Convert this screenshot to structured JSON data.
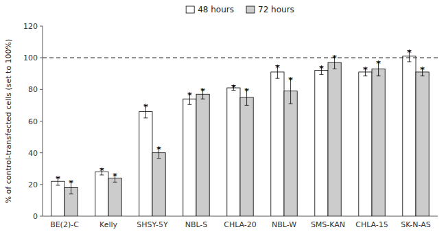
{
  "chart_data": {
    "type": "bar",
    "categories": [
      "BE(2)-C",
      "Kelly",
      "SHSY-5Y",
      "NBL-S",
      "CHLA-20",
      "NBL-W",
      "SMS-KAN",
      "CHLA-15",
      "SK-N-AS"
    ],
    "series": [
      {
        "name": "48 hours",
        "color": "#ffffff",
        "values": [
          22,
          28,
          66,
          74,
          81,
          91,
          92,
          91,
          101
        ],
        "errors": [
          2.5,
          2.0,
          4.0,
          3.5,
          1.5,
          4.0,
          2.5,
          2.5,
          3.5
        ],
        "annotations": [
          "*",
          "*",
          "*",
          "*",
          "*",
          "*",
          "*",
          "*",
          "*"
        ]
      },
      {
        "name": "72 hours",
        "color": "#cccccc",
        "values": [
          18,
          24,
          40,
          77,
          75,
          79,
          97,
          93,
          91
        ],
        "errors": [
          4.0,
          2.5,
          3.5,
          3.0,
          5.0,
          8.0,
          4.0,
          4.5,
          2.5
        ],
        "annotations": [
          "*",
          "*",
          "*",
          "*",
          "*",
          "*",
          "*",
          "*",
          "*"
        ]
      }
    ],
    "edge_color": "#000000",
    "ylabel": "% of control-transfected cells (set to 100%)",
    "ylim": [
      0,
      120
    ],
    "yticks": [
      0,
      20,
      40,
      60,
      80,
      100,
      120
    ],
    "reference_lines": [
      {
        "value": 100,
        "line_style": "dashed"
      }
    ],
    "legend": "top",
    "grid": false
  }
}
